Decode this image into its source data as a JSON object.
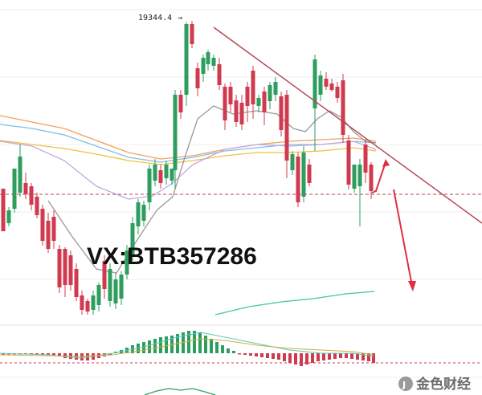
{
  "chart_data": {
    "type": "candlestick",
    "high_marker": "19344.4",
    "watermark": "VX:BTB357286",
    "logo_text": "金色财经",
    "colors": {
      "up": "#2e9e5e",
      "down": "#d03a4e",
      "trendline": "#b24450",
      "support": "#b24450",
      "arrow": "#e03040",
      "ma_orange": "#f0a060",
      "ma_blue": "#7fbfe0",
      "ma_yellow": "#f0c040",
      "ma_purple": "#c0a8e0",
      "ma_gray": "#999999",
      "ma_cyan": "#40c8a0",
      "macd_dif": "#60c8c0",
      "macd_dea": "#d0b040"
    }
  }
}
